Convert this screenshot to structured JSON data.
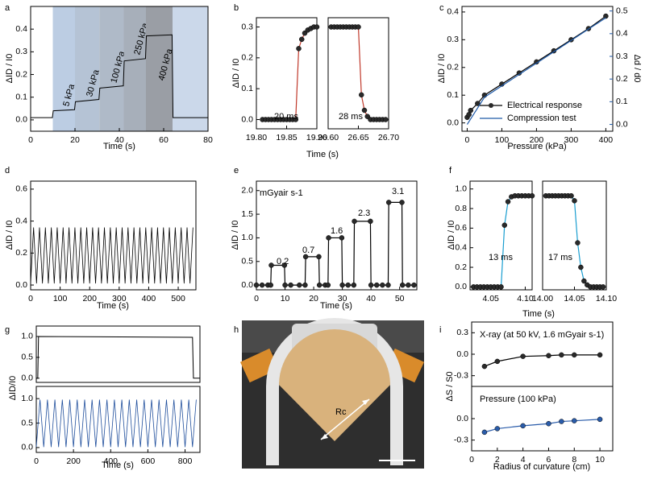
{
  "chart_data": [
    {
      "type": "line",
      "panel": "a",
      "xlabel": "Time (s)",
      "ylabel": "ΔID / I0",
      "xlim": [
        0,
        80
      ],
      "ylim": [
        -0.05,
        0.5
      ],
      "xticks": [
        0,
        20,
        40,
        60,
        80
      ],
      "yticks": [
        {
          "value": 0,
          "label": "0.0"
        },
        0.1,
        0.2,
        0.3,
        0.4
      ],
      "regions": [
        {
          "label": "5 kPa",
          "x0": 10,
          "x1": 20,
          "color": "#bccde3"
        },
        {
          "label": "30 kPa",
          "x0": 20,
          "x1": 31,
          "color": "#b5c3d5"
        },
        {
          "label": "100 kPa",
          "x0": 31,
          "x1": 42,
          "color": "#afbac8"
        },
        {
          "label": "250 kPa",
          "x0": 42,
          "x1": 52,
          "color": "#a7afba"
        },
        {
          "label": "400 kPa",
          "x0": 52,
          "x1": 64,
          "color": "#9a9ea5"
        },
        {
          "x0": 64,
          "x1": 80,
          "color": "#cbd8ea"
        }
      ],
      "x": [
        0,
        9.8,
        10.2,
        19.8,
        20.2,
        30.8,
        31.2,
        41.8,
        42.2,
        51.8,
        52.2,
        63.8,
        64.2,
        80
      ],
      "series": [
        {
          "color": "#000000",
          "values": [
            0.01,
            0.01,
            0.04,
            0.045,
            0.08,
            0.09,
            0.14,
            0.15,
            0.26,
            0.27,
            0.37,
            0.375,
            0.01,
            0.01
          ]
        }
      ]
    },
    {
      "type": "line",
      "panel": "b",
      "ylabel": "ΔID / I0",
      "annotations": [
        "20  ms"
      ],
      "xlim": [
        19.8,
        19.9
      ],
      "ylim": [
        -0.03,
        0.33
      ],
      "xticks": [
        {
          "value": 19.8,
          "label": "19.80"
        },
        19.85,
        {
          "value": 19.9,
          "label": "19.90"
        }
      ],
      "yticks": [
        {
          "value": 0,
          "label": "0.0"
        },
        0.1,
        0.2,
        0.3
      ],
      "x": [
        19.81,
        19.815,
        19.82,
        19.825,
        19.83,
        19.835,
        19.84,
        19.845,
        19.85,
        19.855,
        19.86,
        19.865,
        19.87,
        19.875,
        19.88,
        19.885,
        19.89,
        19.895,
        19.9
      ],
      "series": [
        {
          "color": "#c0392b",
          "marker": "#2a2a2a",
          "values": [
            0,
            0,
            0,
            0,
            0,
            0,
            0,
            0,
            0,
            0,
            0,
            0,
            0.23,
            0.26,
            0.28,
            0.29,
            0.295,
            0.3,
            0.3
          ]
        }
      ]
    },
    {
      "type": "line",
      "xlabel": "Time (s)",
      "annotations": [
        "28  ms"
      ],
      "xlim": [
        26.6,
        26.7
      ],
      "ylim": [
        -0.03,
        0.33
      ],
      "xticks": [
        {
          "value": 26.6,
          "label": "26.60"
        },
        26.65,
        {
          "value": 26.7,
          "label": "26.70"
        }
      ],
      "x": [
        26.605,
        26.61,
        26.615,
        26.62,
        26.625,
        26.63,
        26.635,
        26.64,
        26.645,
        26.65,
        26.655,
        26.66,
        26.665,
        26.67,
        26.675,
        26.68,
        26.685,
        26.69,
        26.695
      ],
      "series": [
        {
          "color": "#c0392b",
          "marker": "#2a2a2a",
          "values": [
            0.3,
            0.3,
            0.3,
            0.3,
            0.3,
            0.3,
            0.3,
            0.3,
            0.3,
            0.3,
            0.08,
            0.03,
            0.01,
            0,
            0,
            0,
            0,
            0,
            0
          ]
        }
      ]
    },
    {
      "type": "line",
      "panel": "c",
      "xlabel": "Pressure (kPa)",
      "ylabel": "ΔID / I0",
      "y2label": "Δd / d0",
      "y2_color": "#1f5aa8",
      "legend": "lower right",
      "xlim": [
        -15,
        420
      ],
      "ylim": [
        -0.03,
        0.42
      ],
      "y2lim": [
        -0.03,
        0.52
      ],
      "xticks": [
        0,
        100,
        200,
        300,
        400
      ],
      "yticks": [
        {
          "value": 0,
          "label": "0.0"
        },
        0.1,
        0.2,
        0.3,
        0.4
      ],
      "y2ticks": [
        {
          "value": 0,
          "label": "0.0"
        },
        0.1,
        0.2,
        0.3,
        0.4,
        0.5
      ],
      "series": [
        {
          "name": "Electrical response",
          "color": "#000000",
          "marker": "#2a2a2a",
          "x": [
            0,
            5,
            10,
            30,
            50,
            100,
            150,
            200,
            250,
            300,
            350,
            400
          ],
          "values": [
            0.02,
            0.03,
            0.045,
            0.07,
            0.1,
            0.14,
            0.18,
            0.22,
            0.26,
            0.3,
            0.34,
            0.385
          ]
        },
        {
          "name": "Compression test",
          "color": "#1f5aa8",
          "axis": "y2",
          "x": [
            0,
            50,
            100,
            150,
            200,
            250,
            300,
            350,
            400
          ],
          "values": [
            0.0,
            0.12,
            0.17,
            0.22,
            0.27,
            0.32,
            0.37,
            0.42,
            0.47
          ]
        }
      ]
    },
    {
      "type": "line",
      "panel": "d",
      "xlabel": "Time (s)",
      "ylabel": "ΔID / I0",
      "xlim": [
        0,
        560
      ],
      "ylim": [
        -0.03,
        0.65
      ],
      "xticks": [
        0,
        100,
        200,
        300,
        400,
        500
      ],
      "yticks": [
        {
          "value": 0,
          "label": "0.0"
        },
        0.2,
        0.4,
        0.6
      ],
      "x": [
        0,
        10,
        20,
        30,
        40,
        50,
        60,
        70,
        80,
        90,
        100,
        110,
        120,
        130,
        140,
        150,
        160,
        170,
        180,
        190,
        200,
        210,
        220,
        230,
        240,
        250,
        260,
        270,
        280,
        290,
        300,
        310,
        320,
        330,
        340,
        350,
        360,
        370,
        380,
        390,
        400,
        410,
        420,
        430,
        440,
        450,
        460,
        470,
        480,
        490,
        500,
        510,
        520,
        530,
        540,
        550
      ],
      "series": [
        {
          "color": "#000000",
          "values": [
            0.01,
            0.36,
            0.01,
            0.36,
            0.01,
            0.36,
            0.01,
            0.36,
            0.01,
            0.36,
            0.01,
            0.36,
            0.01,
            0.36,
            0.01,
            0.36,
            0.01,
            0.36,
            0.01,
            0.36,
            0.01,
            0.36,
            0.01,
            0.36,
            0.01,
            0.36,
            0.01,
            0.36,
            0.01,
            0.36,
            0.01,
            0.36,
            0.01,
            0.36,
            0.01,
            0.36,
            0.01,
            0.36,
            0.01,
            0.36,
            0.01,
            0.36,
            0.01,
            0.36,
            0.01,
            0.36,
            0.01,
            0.36,
            0.01,
            0.36,
            0.01,
            0.36,
            0.01,
            0.36,
            0.01,
            0.36
          ]
        }
      ]
    },
    {
      "type": "line",
      "panel": "e",
      "xlabel": "Time (s)",
      "ylabel": "ΔID / I0",
      "annotations": [
        "mGyair s-1",
        "0.2",
        "0.7",
        "1.6",
        "2.3",
        "3.1"
      ],
      "xlim": [
        0,
        56
      ],
      "ylim": [
        -0.1,
        2.2
      ],
      "xticks": [
        0,
        10,
        20,
        30,
        40,
        50
      ],
      "yticks": [
        {
          "value": 0,
          "label": "0.0"
        },
        0.5,
        {
          "value": 1,
          "label": "1.0"
        },
        1.5,
        {
          "value": 2,
          "label": "2.0"
        }
      ],
      "x": [
        0,
        2,
        4,
        5,
        5.2,
        9.8,
        10,
        12,
        15,
        17,
        17.2,
        21.8,
        22,
        24,
        25,
        25.2,
        29.8,
        30,
        32,
        34,
        34.2,
        39.8,
        40,
        42,
        44,
        46,
        46.2,
        50.8,
        51,
        53,
        55
      ],
      "series": [
        {
          "color": "#000000",
          "marker": "#2a2a2a",
          "values": [
            0,
            0,
            0,
            0,
            0.42,
            0.42,
            0,
            0,
            0,
            0,
            0.6,
            0.6,
            0,
            0,
            0,
            1.0,
            1.0,
            0,
            0,
            0,
            1.35,
            1.35,
            0,
            0,
            0,
            0,
            1.75,
            1.75,
            0,
            0,
            0
          ]
        }
      ]
    },
    {
      "type": "line",
      "panel": "f",
      "ylabel": "ΔID / I0",
      "annotations": [
        "13 ms"
      ],
      "xlim": [
        4.02,
        4.11
      ],
      "ylim": [
        -0.03,
        1.08
      ],
      "xticks": [
        4.05,
        {
          "value": 4.1,
          "label": "4.10"
        }
      ],
      "yticks": [
        {
          "value": 0,
          "label": "0.0"
        },
        0.2,
        0.4,
        0.6,
        0.8,
        {
          "value": 1,
          "label": "1.0"
        }
      ],
      "x": [
        4.025,
        4.03,
        4.035,
        4.04,
        4.045,
        4.05,
        4.055,
        4.06,
        4.065,
        4.07,
        4.075,
        4.08,
        4.085,
        4.09,
        4.095,
        4.1,
        4.105,
        4.11
      ],
      "series": [
        {
          "color": "#1a9ed0",
          "marker": "#2a2a2a",
          "values": [
            0,
            0,
            0,
            0,
            0,
            0,
            0,
            0,
            0,
            0.63,
            0.87,
            0.92,
            0.93,
            0.93,
            0.93,
            0.93,
            0.93,
            0.93
          ]
        }
      ]
    },
    {
      "type": "line",
      "xlabel": "Time (s)",
      "annotations": [
        "17 ms"
      ],
      "xlim": [
        14.0,
        14.1
      ],
      "ylim": [
        -0.03,
        1.08
      ],
      "xticks": [
        {
          "value": 14,
          "label": "14.00"
        },
        14.05,
        {
          "value": 14.1,
          "label": "14.10"
        }
      ],
      "x": [
        14.005,
        14.01,
        14.015,
        14.02,
        14.025,
        14.03,
        14.035,
        14.04,
        14.045,
        14.05,
        14.055,
        14.06,
        14.065,
        14.07,
        14.075,
        14.08,
        14.085,
        14.09,
        14.095
      ],
      "series": [
        {
          "color": "#1a9ed0",
          "marker": "#2a2a2a",
          "values": [
            0.93,
            0.93,
            0.93,
            0.93,
            0.93,
            0.93,
            0.93,
            0.93,
            0.93,
            0.88,
            0.45,
            0.2,
            0.06,
            0.02,
            0,
            0,
            0,
            0,
            0
          ]
        }
      ]
    },
    {
      "type": "line",
      "panel": "g",
      "xlim": [
        0,
        880
      ],
      "ylim": [
        -0.1,
        1.25
      ],
      "yticks": [
        {
          "value": 0,
          "label": "0.0"
        },
        0.5,
        {
          "value": 1,
          "label": "1.0"
        }
      ],
      "x": [
        0,
        8,
        12,
        840,
        845,
        880
      ],
      "series": [
        {
          "color": "#000000",
          "values": [
            0,
            0,
            1.0,
            0.98,
            0,
            0
          ]
        }
      ]
    },
    {
      "type": "line",
      "xlabel": "Time (s)",
      "ylabel": "ΔID/I0",
      "xlim": [
        0,
        880
      ],
      "ylim": [
        -0.1,
        1.25
      ],
      "xticks": [
        0,
        200,
        400,
        600,
        800
      ],
      "yticks": [
        {
          "value": 0,
          "label": "0.0"
        },
        0.5,
        {
          "value": 1,
          "label": "1.0"
        }
      ],
      "x": [
        0,
        20,
        40,
        60,
        80,
        100,
        120,
        140,
        160,
        180,
        200,
        220,
        240,
        260,
        280,
        300,
        320,
        340,
        360,
        380,
        400,
        420,
        440,
        460,
        480,
        500,
        520,
        540,
        560,
        580,
        600,
        620,
        640,
        660,
        680,
        700,
        720,
        740,
        760,
        780,
        800,
        820,
        840,
        860
      ],
      "series": [
        {
          "color": "#1f4e9c",
          "values": [
            0.01,
            0.98,
            0.01,
            0.98,
            0.01,
            0.98,
            0.01,
            0.98,
            0.01,
            0.98,
            0.01,
            0.98,
            0.01,
            0.98,
            0.01,
            0.98,
            0.01,
            0.98,
            0.01,
            0.98,
            0.01,
            0.98,
            0.01,
            0.98,
            0.01,
            0.98,
            0.01,
            0.98,
            0.01,
            0.98,
            0.01,
            0.98,
            0.01,
            0.98,
            0.01,
            0.98,
            0.01,
            0.98,
            0.01,
            0.98,
            0.01,
            0.98,
            0.01,
            0.98
          ]
        }
      ]
    },
    {
      "type": "image",
      "panel": "h",
      "annotations": [
        "Rc"
      ]
    },
    {
      "type": "line",
      "panel": "i",
      "annotations": [
        "X-ray (at 50 kV, 1.6 mGyair s-1)"
      ],
      "xlim": [
        0,
        11
      ],
      "ylim": [
        -0.45,
        0.45
      ],
      "yticks": [
        0.3,
        {
          "value": 0,
          "label": "0.0"
        },
        -0.3
      ],
      "x": [
        1,
        2,
        4,
        6,
        7,
        8,
        10
      ],
      "series": [
        {
          "color": "#000000",
          "marker": "#2a2a2a",
          "values": [
            -0.17,
            -0.1,
            -0.03,
            -0.02,
            -0.01,
            -0.01,
            -0.01
          ]
        }
      ]
    },
    {
      "type": "line",
      "xlabel": "Radius of curvature (cm)",
      "ylabel": "ΔS / S0",
      "annotations": [
        "Pressure (100 kPa)"
      ],
      "xlim": [
        0,
        11
      ],
      "ylim": [
        -0.45,
        0.45
      ],
      "xticks": [
        0,
        2,
        4,
        6,
        8,
        10
      ],
      "yticks": [
        {
          "value": 0,
          "label": "0.0"
        },
        -0.3
      ],
      "x": [
        1,
        2,
        4,
        6,
        7,
        8,
        10
      ],
      "series": [
        {
          "color": "#2a5caa",
          "marker": "#2a5caa",
          "values": [
            -0.19,
            -0.14,
            -0.1,
            -0.07,
            -0.04,
            -0.03,
            -0.01
          ]
        }
      ]
    }
  ]
}
